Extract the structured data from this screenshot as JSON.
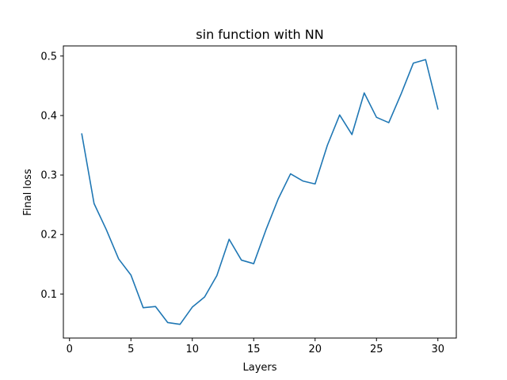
{
  "chart_data": {
    "type": "line",
    "title": "sin function with NN",
    "xlabel": "Layers",
    "ylabel": "Final loss",
    "xlim": [
      -0.5,
      31.5
    ],
    "ylim": [
      0.026,
      0.517
    ],
    "xticks": [
      0,
      5,
      10,
      15,
      20,
      25,
      30
    ],
    "yticks": [
      0.1,
      0.2,
      0.3,
      0.4,
      0.5
    ],
    "xtick_labels": [
      "0",
      "5",
      "10",
      "15",
      "20",
      "25",
      "30"
    ],
    "ytick_labels": [
      "0.1",
      "0.2",
      "0.3",
      "0.4",
      "0.5"
    ],
    "grid": false,
    "legend": null,
    "series": [
      {
        "name": "Final loss",
        "color": "#1f77b4",
        "x": [
          1,
          2,
          3,
          4,
          5,
          6,
          7,
          8,
          9,
          10,
          11,
          12,
          13,
          14,
          15,
          16,
          17,
          18,
          19,
          20,
          21,
          22,
          23,
          24,
          25,
          26,
          27,
          28,
          29,
          30
        ],
        "values": [
          0.369,
          0.252,
          0.208,
          0.159,
          0.132,
          0.077,
          0.079,
          0.052,
          0.049,
          0.078,
          0.095,
          0.131,
          0.192,
          0.157,
          0.151,
          0.208,
          0.26,
          0.302,
          0.29,
          0.285,
          0.35,
          0.401,
          0.368,
          0.438,
          0.397,
          0.388,
          0.436,
          0.488,
          0.494,
          0.411
        ]
      }
    ]
  }
}
